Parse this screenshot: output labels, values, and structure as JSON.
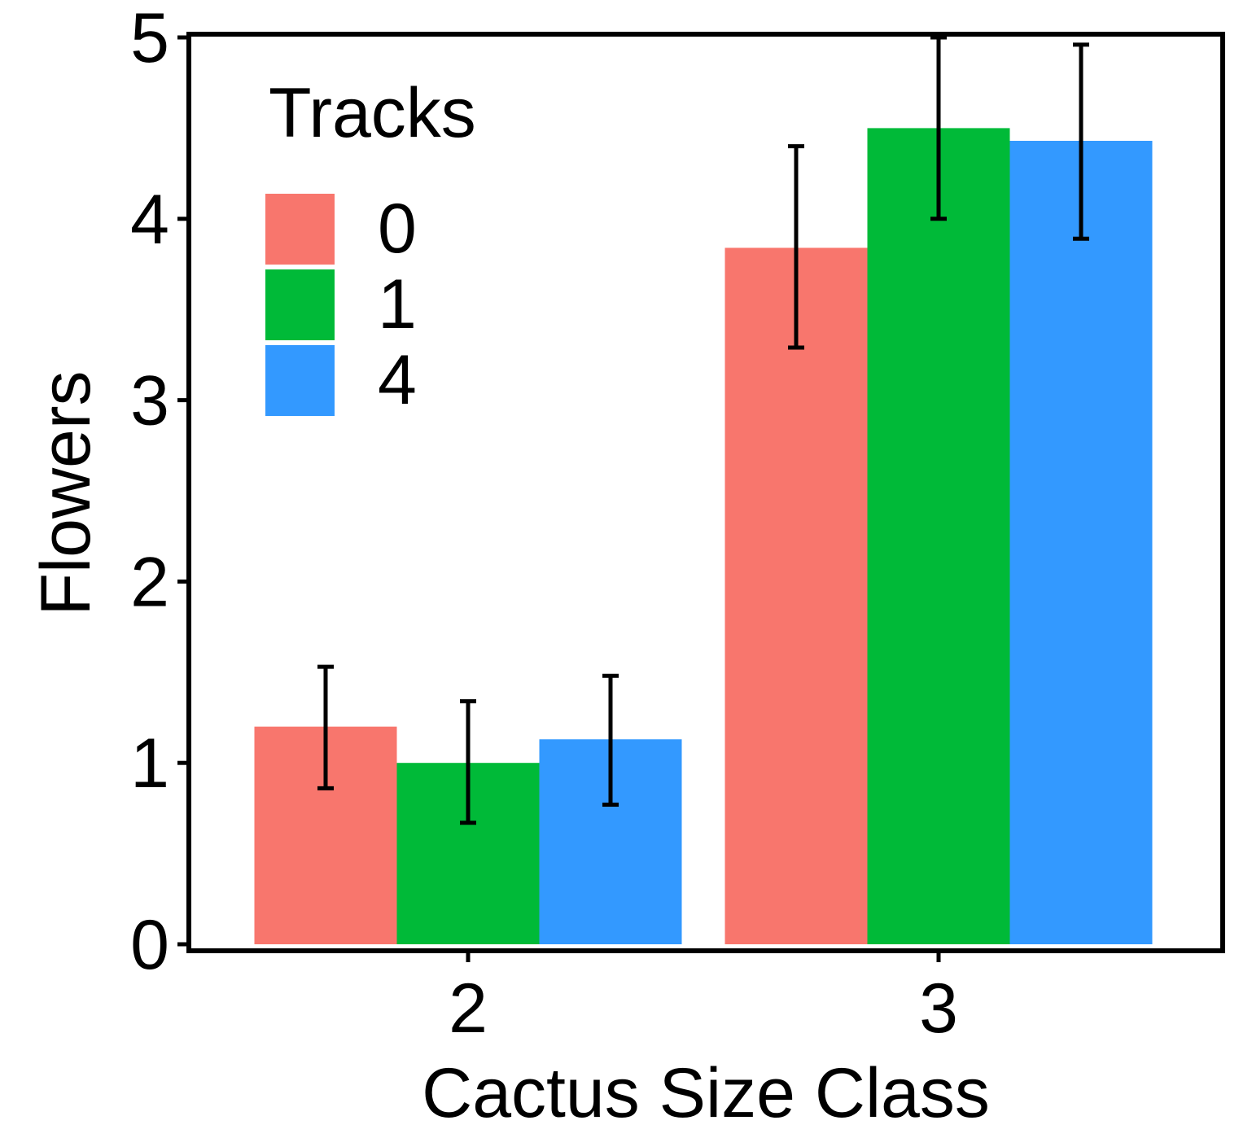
{
  "chart_data": {
    "type": "bar",
    "xlabel": "Cactus Size Class",
    "ylabel": "Flowers",
    "categories": [
      "2",
      "3"
    ],
    "ylim": [
      0,
      5
    ],
    "yticks": [
      "0",
      "1",
      "2",
      "3",
      "4",
      "5"
    ],
    "series": [
      {
        "name": "0",
        "color": "#F8766D",
        "values": [
          1.2,
          3.84
        ],
        "err_low": [
          0.86,
          3.29
        ],
        "err_high": [
          1.53,
          4.4
        ]
      },
      {
        "name": "1",
        "color": "#00BA38",
        "values": [
          1.0,
          4.5
        ],
        "err_low": [
          0.67,
          4.0
        ],
        "err_high": [
          1.34,
          5.0
        ]
      },
      {
        "name": "4",
        "color": "#3399FF",
        "values": [
          1.13,
          4.43
        ],
        "err_low": [
          0.77,
          3.89
        ],
        "err_high": [
          1.48,
          4.96
        ]
      }
    ],
    "legend": {
      "title": "Tracks",
      "placement": "top-left (inside plot)"
    },
    "grid": false
  }
}
